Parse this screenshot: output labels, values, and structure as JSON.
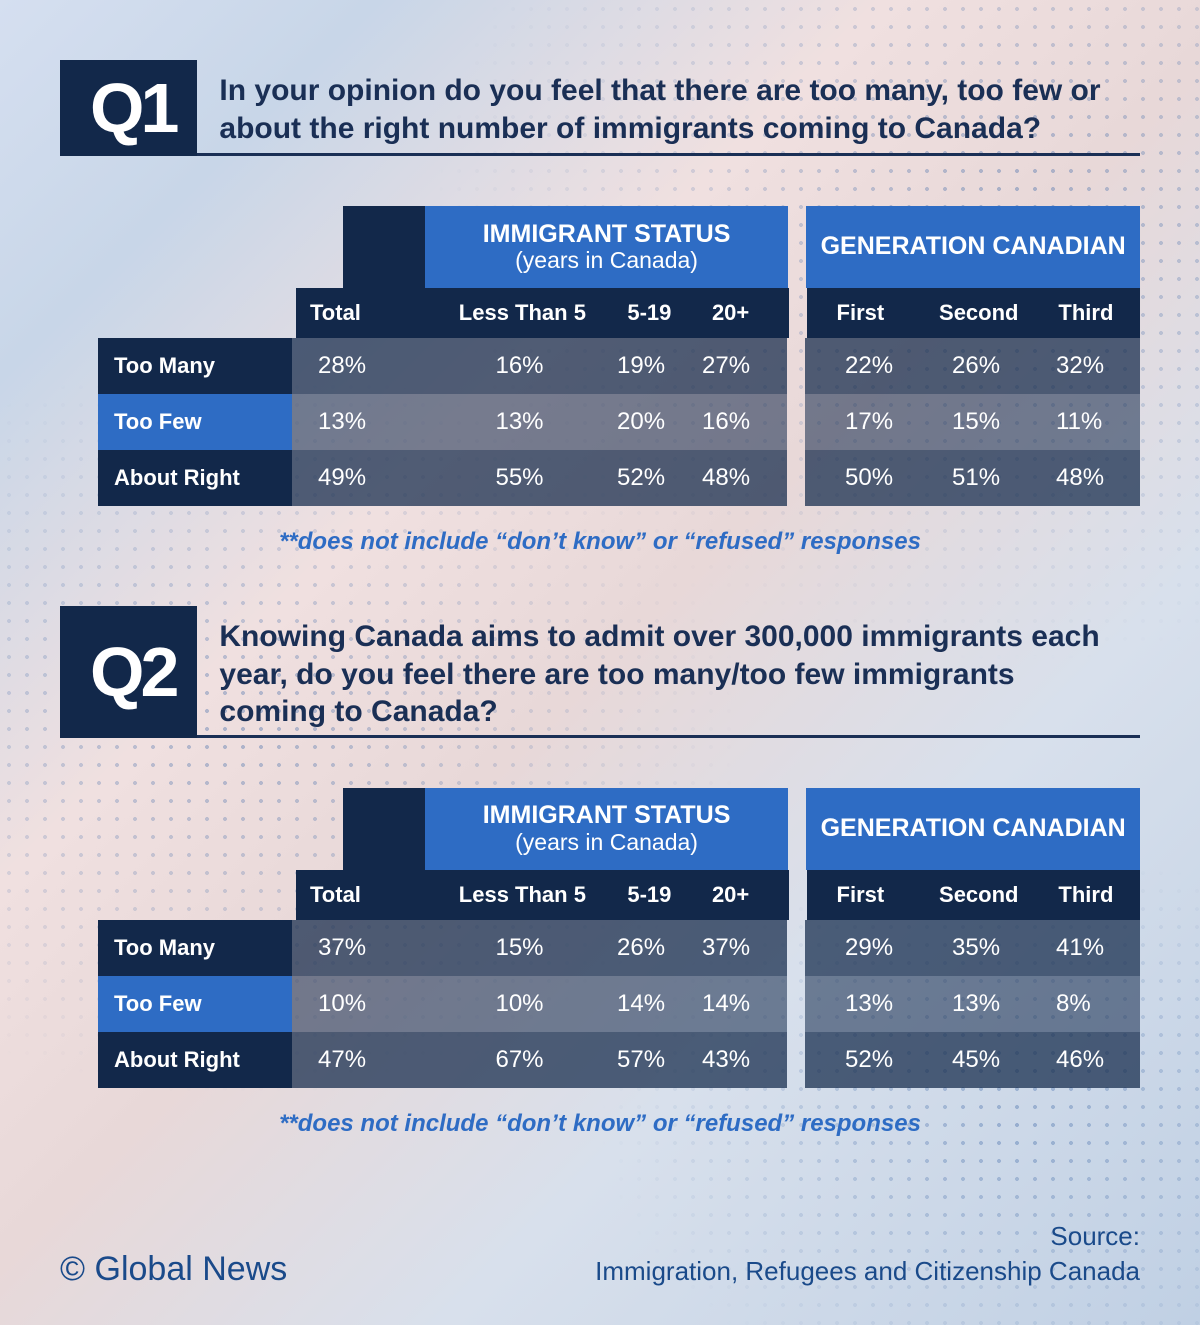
{
  "background_colors": {
    "dark_navy": "#12284a",
    "bright_blue": "#2e6cc4",
    "text_navy": "#1a2f55",
    "footnote_blue": "#2e6cc4",
    "footer_blue": "#1a4a8a"
  },
  "questions": [
    {
      "badge": "Q1",
      "text": "In your opinion do you feel that there are too many, too few or about the right number of immigrants coming to Canada?",
      "table": {
        "group_headers": {
          "immigrant": "IMMIGRANT STATUS",
          "immigrant_sub": "(years in Canada)",
          "generation": "GENERATION CANADIAN"
        },
        "sub_headers": {
          "total": "Total",
          "lt5": "Less Than 5",
          "y519": "5-19",
          "y20p": "20+",
          "first": "First",
          "second": "Second",
          "third": "Third"
        },
        "rows": [
          {
            "label": "Too Many",
            "values": {
              "total": "28%",
              "lt5": "16%",
              "y519": "19%",
              "y20p": "27%",
              "first": "22%",
              "second": "26%",
              "third": "32%"
            }
          },
          {
            "label": "Too Few",
            "values": {
              "total": "13%",
              "lt5": "13%",
              "y519": "20%",
              "y20p": "16%",
              "first": "17%",
              "second": "15%",
              "third": "11%"
            }
          },
          {
            "label": "About Right",
            "values": {
              "total": "49%",
              "lt5": "55%",
              "y519": "52%",
              "y20p": "48%",
              "first": "50%",
              "second": "51%",
              "third": "48%"
            }
          }
        ],
        "footnote": "**does not include “don’t know” or “refused” responses"
      }
    },
    {
      "badge": "Q2",
      "text": "Knowing Canada aims to admit over 300,000 immigrants each year, do you feel there are too many/too few immigrants coming to Canada?",
      "table": {
        "group_headers": {
          "immigrant": "IMMIGRANT STATUS",
          "immigrant_sub": "(years in Canada)",
          "generation": "GENERATION CANADIAN"
        },
        "sub_headers": {
          "total": "Total",
          "lt5": "Less Than 5",
          "y519": "5-19",
          "y20p": "20+",
          "first": "First",
          "second": "Second",
          "third": "Third"
        },
        "rows": [
          {
            "label": "Too Many",
            "values": {
              "total": "37%",
              "lt5": "15%",
              "y519": "26%",
              "y20p": "37%",
              "first": "29%",
              "second": "35%",
              "third": "41%"
            }
          },
          {
            "label": "Too Few",
            "values": {
              "total": "10%",
              "lt5": "10%",
              "y519": "14%",
              "y20p": "14%",
              "first": "13%",
              "second": "13%",
              "third": "8%"
            }
          },
          {
            "label": "About Right",
            "values": {
              "total": "47%",
              "lt5": "67%",
              "y519": "57%",
              "y20p": "43%",
              "first": "52%",
              "second": "45%",
              "third": "46%"
            }
          }
        ],
        "footnote": "**does not include “don’t know” or “refused” responses"
      }
    }
  ],
  "footer": {
    "copyright": "© Global News",
    "source_label": "Source:",
    "source_text": "Immigration, Refugees and Citizenship Canada"
  }
}
